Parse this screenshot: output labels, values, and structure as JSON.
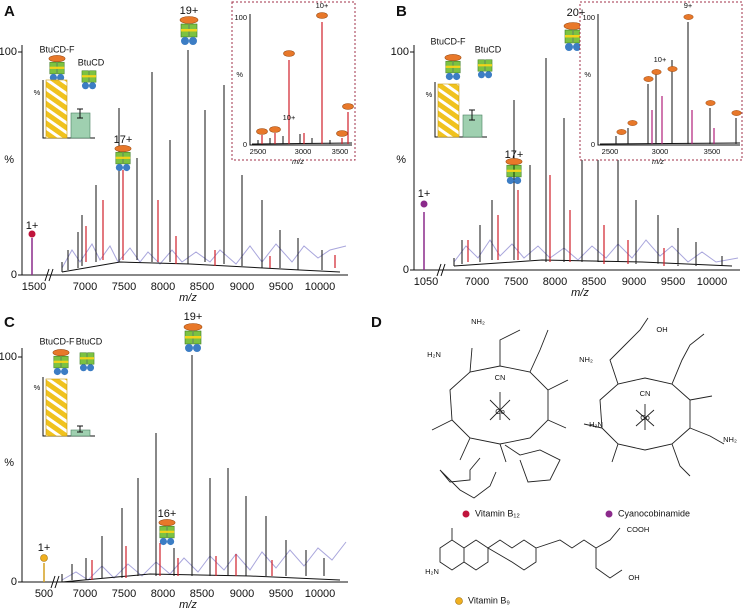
{
  "panels": [
    {
      "label": "A",
      "y_axis": {
        "top": "100",
        "middle": "%",
        "bottom": "0"
      },
      "x_ticks": [
        "1500",
        "7000",
        "7500",
        "8000",
        "8500",
        "9000",
        "9500",
        "10000"
      ],
      "x_label": "m/z",
      "charge_labels": [
        "1+",
        "17+",
        "19+"
      ],
      "legend": {
        "complex_full": "BtuCD-F",
        "complex": "BtuCD",
        "percent": "%"
      },
      "inset": {
        "y_axis": {
          "top": "100",
          "middle": "%",
          "bottom": "0"
        },
        "x_ticks": [
          "2500",
          "3000",
          "3500"
        ],
        "x_label": "m/z",
        "charge_labels": [
          "10+",
          "10+"
        ]
      }
    },
    {
      "label": "B",
      "y_axis": {
        "top": "100",
        "middle": "%",
        "bottom": "0"
      },
      "x_ticks": [
        "1050",
        "7000",
        "7500",
        "8000",
        "8500",
        "9000",
        "9500",
        "10000"
      ],
      "x_label": "m/z",
      "charge_labels": [
        "1+",
        "17+",
        "20+"
      ],
      "legend": {
        "complex_full": "BtuCD-F",
        "complex": "BtuCD",
        "percent": "%"
      },
      "inset": {
        "y_axis": {
          "top": "100",
          "middle": "%",
          "bottom": "0"
        },
        "x_ticks": [
          "2500",
          "3000",
          "3500"
        ],
        "x_label": "m/z",
        "charge_labels": [
          "9+",
          "10+"
        ]
      }
    },
    {
      "label": "C",
      "y_axis": {
        "top": "100",
        "middle": "%",
        "bottom": "0"
      },
      "x_ticks": [
        "500",
        "7000",
        "7500",
        "8000",
        "8500",
        "9000",
        "9500",
        "10000"
      ],
      "x_label": "m/z",
      "charge_labels": [
        "1+",
        "16+",
        "19+"
      ],
      "legend": {
        "complex_full": "BtuCD-F",
        "complex": "BtuCD",
        "percent": "%"
      }
    }
  ],
  "structures": {
    "label": "D",
    "atom_labels": [
      "NH₂",
      "H₂N",
      "CN",
      "Co",
      "NH₂",
      "OH",
      "CN",
      "Co",
      "H₂N",
      "NH₂",
      "COOH",
      "OH",
      "H₂N"
    ],
    "names": [
      "Vitamin B₁₂",
      "Cyanocobinamide",
      "Vitamin B₉"
    ]
  }
}
